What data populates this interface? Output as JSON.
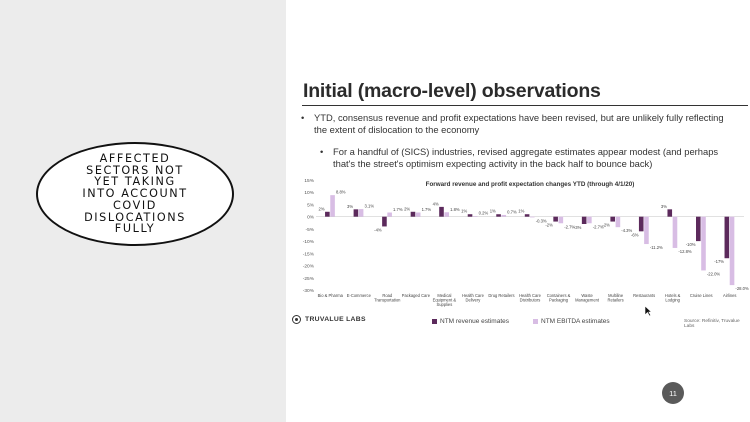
{
  "callout": {
    "text": "AFFECTED\nSECTORS NOT\nYET TAKING\nINTO ACCOUNT\nCOVID\nDISLOCATIONS\nFULLY"
  },
  "slide": {
    "title": "Initial (macro-level) observations",
    "bullets": [
      {
        "marker": "•",
        "text": "YTD, consensus revenue and profit expectations have been revised, but are unlikely fully reflecting the extent of dislocation to the economy"
      },
      {
        "marker": "•",
        "text": "For a handful of (SICS) industries, revised aggregate estimates appear modest (and perhaps that's the street's optimism expecting activity in the back half to bounce back)"
      }
    ],
    "logo_text": "TRUVALUE LABS",
    "legend": [
      {
        "label": "NTM revenue estimates",
        "color": "#5c2a5c"
      },
      {
        "label": "NTM EBITDA estimates",
        "color": "#d8bde4"
      }
    ],
    "source": "Source: Refinitiv, Truvalue Labs",
    "page_number": "11"
  },
  "chart_data": {
    "type": "bar",
    "title": "Forward revenue and profit expectation changes YTD (through 4/1/20)",
    "ylim": [
      -30,
      15
    ],
    "yticks": [
      "15%",
      "10%",
      "5%",
      "0%",
      "-5%",
      "-10%",
      "-15%",
      "-20%",
      "-25%",
      "-30%"
    ],
    "categories": [
      "Bio & Pharma",
      "E-Commerce",
      "Road\nTransportation",
      "Packaged Care",
      "Medical\nEquipment &\nSupplies",
      "Health Care\nDelivery",
      "Drug Retailers",
      "Health Care\nDistributors",
      "Containers &\nPackaging",
      "Waste\nManagement",
      "Multiline\nRetailers",
      "Restaurants",
      "Hotels &\nLodging",
      "Cruise Lines",
      "Airlines"
    ],
    "series": [
      {
        "name": "NTM revenue estimates",
        "color": "#5c2a5c",
        "values": [
          2.0,
          3.0,
          -4.0,
          2.0,
          4.0,
          1.0,
          1.0,
          1.0,
          -2.0,
          -3.0,
          -2.0,
          -6.0,
          3.0,
          -10.0,
          -17.0
        ],
        "labels": [
          "2%",
          "3%",
          "-4%",
          "2%",
          "4%",
          "1%",
          "1%",
          "1%",
          "-2%",
          "-3%",
          "-2%",
          "-6%",
          "3%",
          "-10%",
          "-17%"
        ]
      },
      {
        "name": "NTM EBITDA estimates",
        "color": "#d8bde4",
        "values": [
          8.8,
          3.1,
          1.7,
          1.7,
          1.8,
          0.2,
          0.7,
          -0.3,
          -2.7,
          -2.7,
          -4.3,
          -11.2,
          -12.8,
          -22.0,
          -28.0
        ],
        "labels": [
          "8.8%",
          "3.1%",
          "1.7%",
          "1.7%",
          "1.8%",
          "0.2%",
          "0.7%",
          "-0.3%",
          "-2.7%",
          "-2.7%",
          "-4.3%",
          "-11.2%",
          "-12.8%",
          "-22.0%",
          "-28.0%"
        ]
      }
    ]
  }
}
